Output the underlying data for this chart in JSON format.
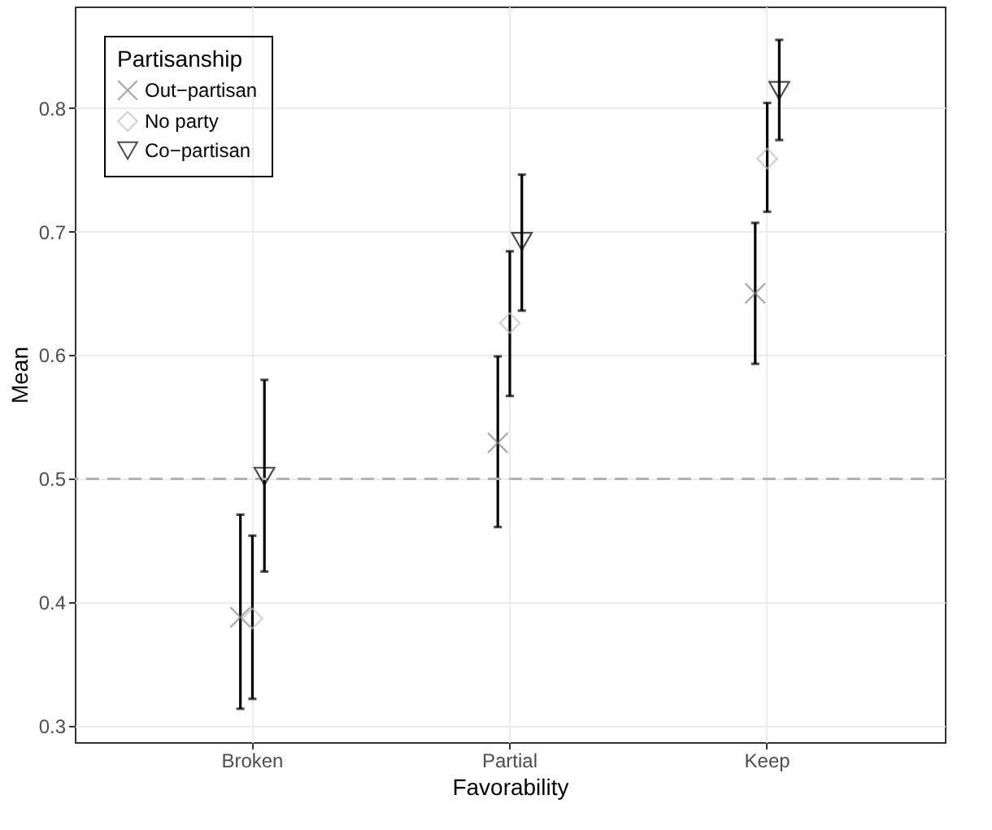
{
  "chart_data": {
    "type": "scatter",
    "xlabel": "Favorability",
    "ylabel": "Mean",
    "legend_title": "Partisanship",
    "categories": [
      "Broken",
      "Partial",
      "Keep"
    ],
    "series": [
      {
        "name": "Out−partisan",
        "color": "#808080",
        "marker": "cross",
        "values": [
          0.388,
          0.529,
          0.65
        ],
        "errors": [
          [
            0.314,
            0.471
          ],
          [
            0.461,
            0.599
          ],
          [
            0.593,
            0.707
          ]
        ]
      },
      {
        "name": "No party",
        "color": "#bebebe",
        "marker": "diamond",
        "values": [
          0.387,
          0.626,
          0.759
        ],
        "errors": [
          [
            0.322,
            0.454
          ],
          [
            0.567,
            0.684
          ],
          [
            0.716,
            0.804
          ]
        ]
      },
      {
        "name": "Co−partisan",
        "color": "#000000",
        "marker": "triangle-down",
        "values": [
          0.502,
          0.692,
          0.814
        ],
        "errors": [
          [
            0.425,
            0.58
          ],
          [
            0.636,
            0.746
          ],
          [
            0.774,
            0.855
          ]
        ]
      }
    ],
    "ylim": [
      0.287,
      0.882
    ],
    "yticks": [
      0.3,
      0.4,
      0.5,
      0.6,
      0.7,
      0.8
    ],
    "grid": true,
    "legend": "top left",
    "ref_lines": [
      {
        "axis": "y",
        "value": 0.5,
        "color": "#b3b3b3",
        "line_style": "dashed"
      }
    ]
  }
}
